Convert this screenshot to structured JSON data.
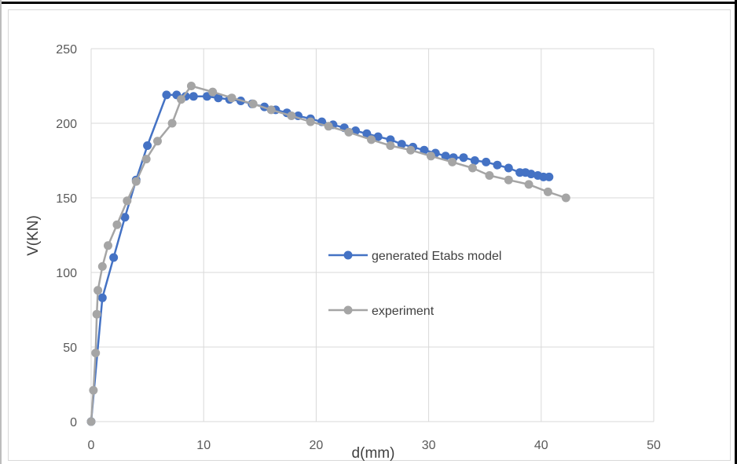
{
  "chart_data": {
    "type": "scatter",
    "title": "",
    "xlabel": "d(mm)",
    "ylabel": "V(KN)",
    "xlim": [
      0,
      50
    ],
    "ylim": [
      0,
      250
    ],
    "xticks": [
      0,
      10,
      20,
      30,
      40,
      50
    ],
    "yticks": [
      0,
      50,
      100,
      150,
      200,
      250
    ],
    "grid": true,
    "legend_position": "center-right",
    "series": [
      {
        "name": "generated Etabs model",
        "color": "#4472C4",
        "x": [
          0,
          1,
          2,
          3,
          4,
          5,
          6.7,
          7.6,
          8.4,
          9.1,
          10.3,
          11.3,
          12.3,
          13.3,
          14.3,
          15.4,
          16.4,
          17.4,
          18.4,
          19.5,
          20.5,
          21.5,
          22.5,
          23.5,
          24.5,
          25.5,
          26.6,
          27.6,
          28.6,
          29.6,
          30.6,
          31.5,
          32.2,
          33.1,
          34.1,
          35.1,
          36.1,
          37.1,
          38.1,
          38.6,
          39.1,
          39.7,
          40.2,
          40.7
        ],
        "y": [
          0,
          83,
          110,
          137,
          162,
          185,
          219,
          219,
          218,
          218,
          218,
          217,
          216,
          215,
          213,
          211,
          209,
          207,
          205,
          203,
          201,
          199,
          197,
          195,
          193,
          191,
          189,
          186,
          184,
          182,
          180,
          178,
          177,
          177,
          175,
          174,
          172,
          170,
          167,
          167,
          166,
          165,
          164,
          164
        ]
      },
      {
        "name": "experiment",
        "color": "#A5A5A5",
        "x": [
          0,
          0.2,
          0.4,
          0.5,
          0.6,
          1,
          1.5,
          2.3,
          3.2,
          4,
          4.9,
          5.9,
          7.2,
          8,
          8.9,
          10.8,
          12.5,
          14.4,
          16,
          17.8,
          19.5,
          21.1,
          22.9,
          24.9,
          26.6,
          28.4,
          30.2,
          32.1,
          33.9,
          35.4,
          37.1,
          38.9,
          40.6,
          42.2
        ],
        "y": [
          0,
          21,
          46,
          72,
          88,
          104,
          118,
          132,
          148,
          161,
          176,
          188,
          200,
          216,
          225,
          221,
          217,
          213,
          209,
          205,
          201,
          198,
          194,
          189,
          185,
          182,
          178,
          174,
          170,
          165,
          162,
          159,
          154,
          150
        ]
      }
    ]
  }
}
